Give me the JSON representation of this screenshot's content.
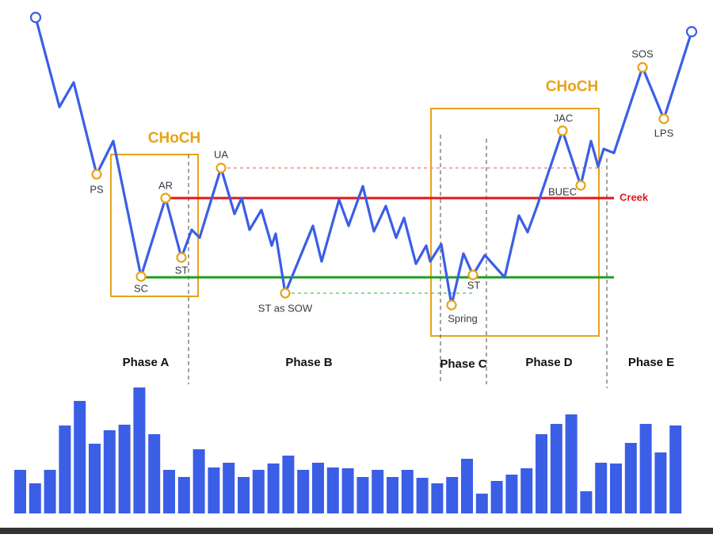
{
  "diagram": {
    "points": {
      "ps": "PS",
      "sc": "SC",
      "ar": "AR",
      "st1": "ST",
      "ua": "UA",
      "st_sow": "ST as SOW",
      "spring": "Spring",
      "st2": "ST",
      "jac": "JAC",
      "buec": "BUEC",
      "sos": "SOS",
      "lps": "LPS"
    },
    "levels": {
      "creek": "Creek"
    },
    "choch": [
      "CHoCH",
      "CHoCH"
    ],
    "phases": [
      "Phase A",
      "Phase B",
      "Phase C",
      "Phase D",
      "Phase E"
    ]
  }
}
